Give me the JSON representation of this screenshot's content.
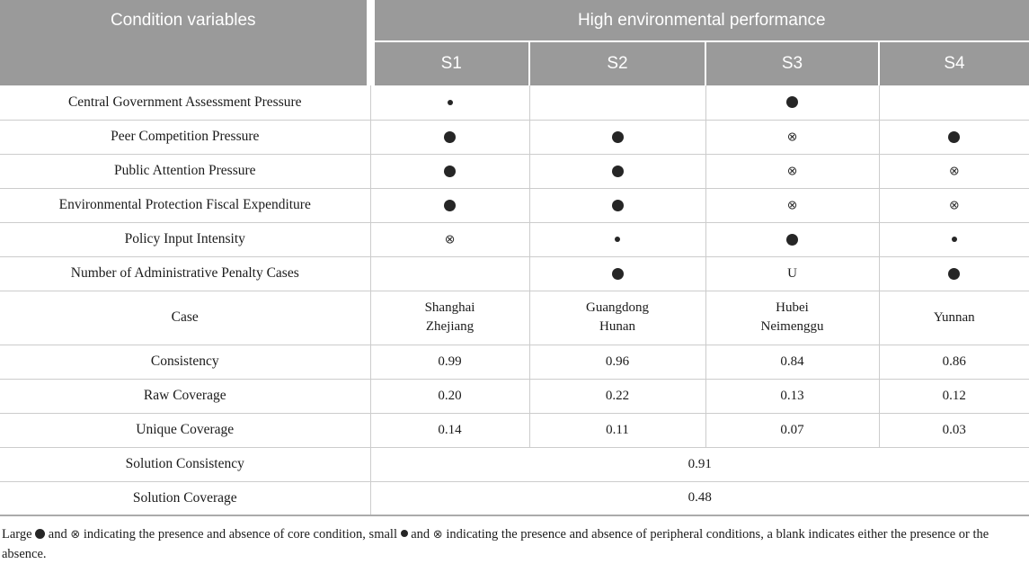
{
  "table": {
    "header": {
      "condition_label": "Condition variables",
      "outcome_label": "High environmental performance",
      "solutions": [
        "S1",
        "S2",
        "S3",
        "S4"
      ]
    },
    "rows": [
      {
        "label": "Central Government Assessment Pressure",
        "cells": [
          "small-dot",
          "",
          "large-dot",
          ""
        ]
      },
      {
        "label": "Peer Competition Pressure",
        "cells": [
          "large-dot",
          "large-dot",
          "cross-circle",
          "large-dot"
        ]
      },
      {
        "label": "Public Attention Pressure",
        "cells": [
          "large-dot",
          "large-dot",
          "cross-circle",
          "cross-circle"
        ]
      },
      {
        "label": "Environmental Protection Fiscal Expenditure",
        "cells": [
          "large-dot",
          "large-dot",
          "cross-circle",
          "cross-circle"
        ]
      },
      {
        "label": "Policy Input Intensity",
        "cells": [
          "cross-circle",
          "small-dot",
          "large-dot",
          "small-dot"
        ]
      },
      {
        "label": "Number of Administrative Penalty Cases",
        "cells": [
          "",
          "large-dot",
          "U",
          "large-dot"
        ]
      },
      {
        "label": "Case",
        "tall": true,
        "cells": [
          [
            "Shanghai",
            "Zhejiang"
          ],
          [
            "Guangdong",
            "Hunan"
          ],
          [
            "Hubei",
            "Neimenggu"
          ],
          [
            "Yunnan"
          ]
        ]
      },
      {
        "label": "Consistency",
        "cells": [
          "0.99",
          "0.96",
          "0.84",
          "0.86"
        ]
      },
      {
        "label": "Raw Coverage",
        "cells": [
          "0.20",
          "0.22",
          "0.13",
          "0.12"
        ]
      },
      {
        "label": "Unique Coverage",
        "cells": [
          "0.14",
          "0.11",
          "0.07",
          "0.03"
        ]
      },
      {
        "label": "Solution Consistency",
        "span_value": "0.91"
      },
      {
        "label": "Solution Coverage",
        "span_value": "0.48"
      }
    ]
  },
  "footnote": {
    "segments": [
      {
        "text": "Large "
      },
      {
        "symbol": "large-dot"
      },
      {
        "text": " and "
      },
      {
        "symbol": "cross-circle"
      },
      {
        "text": " indicating the presence and absence of core condition, small "
      },
      {
        "symbol": "small-dot"
      },
      {
        "text": " and "
      },
      {
        "symbol": "cross-circle"
      },
      {
        "text": " indicating the presence and absence of peripheral conditions, a blank indicates either the presence or the absence."
      }
    ]
  },
  "symbols": {
    "large-dot": "core condition presence",
    "small-dot": "peripheral condition presence",
    "cross-circle": "condition absence",
    "cross_glyph": "⊗"
  },
  "colors": {
    "header_background": "#9a9a9a",
    "header_text": "#ffffff",
    "body_text": "#1b1b1b",
    "grid_line": "#cccccc",
    "table_bottom_border": "#ababab",
    "symbol_color": "#262626"
  }
}
